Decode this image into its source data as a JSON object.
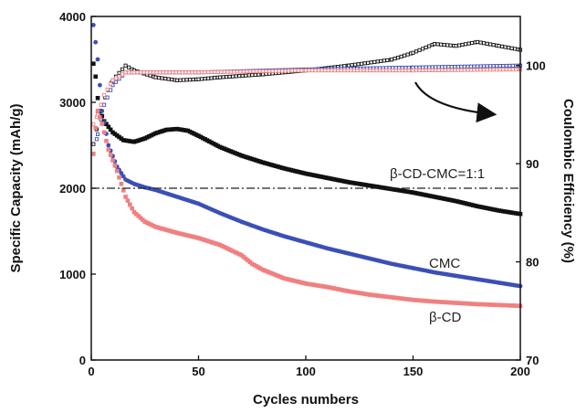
{
  "chart_data": {
    "type": "scatter",
    "title": "",
    "xlabel": "Cycles numbers",
    "ylabel": "Specific Capacity (mAh/g)",
    "y2label": "Coulombic Efficiency (%)",
    "xlim": [
      0,
      200
    ],
    "ylim": [
      0,
      4000
    ],
    "y2lim": [
      70,
      105
    ],
    "xticks": [
      "0",
      "50",
      "100",
      "150",
      "200"
    ],
    "yticks": [
      "0",
      "1000",
      "2000",
      "3000",
      "4000"
    ],
    "y2ticks": [
      "70",
      "80",
      "90",
      "100"
    ],
    "grid": false,
    "legend": "none",
    "colors": {
      "beta_cd_cmc": "#111111",
      "cmc": "#3b4fb8",
      "beta_cd": "#f08080"
    },
    "capacity_series": [
      {
        "name": "β-CD-CMC=1:1",
        "color_key": "beta_cd_cmc",
        "points": [
          [
            1,
            3450
          ],
          [
            2,
            3300
          ],
          [
            3,
            3050
          ],
          [
            4,
            2900
          ],
          [
            6,
            2780
          ],
          [
            10,
            2650
          ],
          [
            15,
            2560
          ],
          [
            20,
            2540
          ],
          [
            25,
            2580
          ],
          [
            30,
            2640
          ],
          [
            35,
            2680
          ],
          [
            40,
            2690
          ],
          [
            45,
            2670
          ],
          [
            50,
            2610
          ],
          [
            60,
            2480
          ],
          [
            70,
            2380
          ],
          [
            80,
            2300
          ],
          [
            90,
            2230
          ],
          [
            100,
            2170
          ],
          [
            110,
            2120
          ],
          [
            120,
            2070
          ],
          [
            130,
            2030
          ],
          [
            140,
            1990
          ],
          [
            150,
            1950
          ],
          [
            160,
            1900
          ],
          [
            170,
            1850
          ],
          [
            180,
            1790
          ],
          [
            190,
            1740
          ],
          [
            200,
            1700
          ]
        ]
      },
      {
        "name": "CMC",
        "color_key": "cmc",
        "points": [
          [
            1,
            3900
          ],
          [
            2,
            3700
          ],
          [
            3,
            3500
          ],
          [
            5,
            2900
          ],
          [
            8,
            2500
          ],
          [
            12,
            2250
          ],
          [
            16,
            2100
          ],
          [
            20,
            2050
          ],
          [
            25,
            2010
          ],
          [
            30,
            1980
          ],
          [
            40,
            1900
          ],
          [
            50,
            1820
          ],
          [
            60,
            1710
          ],
          [
            70,
            1610
          ],
          [
            80,
            1520
          ],
          [
            90,
            1440
          ],
          [
            100,
            1370
          ],
          [
            110,
            1300
          ],
          [
            120,
            1240
          ],
          [
            130,
            1180
          ],
          [
            140,
            1120
          ],
          [
            150,
            1070
          ],
          [
            160,
            1020
          ],
          [
            170,
            980
          ],
          [
            180,
            940
          ],
          [
            190,
            900
          ],
          [
            200,
            860
          ]
        ]
      },
      {
        "name": "β-CD",
        "color_key": "beta_cd",
        "points": [
          [
            1,
            2400
          ],
          [
            2,
            2700
          ],
          [
            3,
            2900
          ],
          [
            5,
            2750
          ],
          [
            8,
            2450
          ],
          [
            12,
            2200
          ],
          [
            16,
            1900
          ],
          [
            20,
            1720
          ],
          [
            25,
            1610
          ],
          [
            30,
            1550
          ],
          [
            40,
            1480
          ],
          [
            50,
            1420
          ],
          [
            60,
            1340
          ],
          [
            70,
            1220
          ],
          [
            75,
            1120
          ],
          [
            80,
            1050
          ],
          [
            90,
            950
          ],
          [
            100,
            890
          ],
          [
            110,
            850
          ],
          [
            120,
            800
          ],
          [
            130,
            760
          ],
          [
            140,
            730
          ],
          [
            150,
            700
          ],
          [
            160,
            680
          ],
          [
            170,
            665
          ],
          [
            180,
            650
          ],
          [
            190,
            640
          ],
          [
            200,
            630
          ]
        ]
      }
    ],
    "efficiency_series": [
      {
        "color_key": "beta_cd_cmc",
        "points": [
          [
            1,
            92
          ],
          [
            5,
            96
          ],
          [
            10,
            98.5
          ],
          [
            16,
            100
          ],
          [
            20,
            99.5
          ],
          [
            30,
            98.8
          ],
          [
            40,
            98.5
          ],
          [
            50,
            98.6
          ],
          [
            60,
            98.8
          ],
          [
            80,
            99.1
          ],
          [
            100,
            99.5
          ],
          [
            120,
            100
          ],
          [
            140,
            100.6
          ],
          [
            150,
            101.3
          ],
          [
            160,
            102.2
          ],
          [
            170,
            102
          ],
          [
            180,
            102.4
          ],
          [
            190,
            102
          ],
          [
            200,
            101.6
          ]
        ]
      },
      {
        "color_key": "cmc",
        "points": [
          [
            1,
            91
          ],
          [
            3,
            93
          ],
          [
            6,
            96
          ],
          [
            10,
            98
          ],
          [
            16,
            99.3
          ],
          [
            20,
            99.3
          ],
          [
            50,
            99.3
          ],
          [
            100,
            99.6
          ],
          [
            150,
            99.8
          ],
          [
            200,
            100
          ]
        ]
      },
      {
        "color_key": "beta_cd",
        "points": [
          [
            1,
            94
          ],
          [
            3,
            95
          ],
          [
            6,
            97
          ],
          [
            10,
            98.5
          ],
          [
            16,
            99.3
          ],
          [
            20,
            99.3
          ],
          [
            50,
            99.3
          ],
          [
            100,
            99.5
          ],
          [
            150,
            99.5
          ],
          [
            200,
            99.6
          ]
        ]
      }
    ],
    "reference_line": {
      "y": 2000,
      "x_range": [
        0,
        200
      ],
      "style": "dash-dot"
    },
    "annotations": {
      "beta_cd_cmc": "β-CD-CMC=1:1",
      "cmc": "CMC",
      "beta_cd": "β-CD"
    },
    "arrow": "points right toward Coulombic Efficiency axis"
  }
}
